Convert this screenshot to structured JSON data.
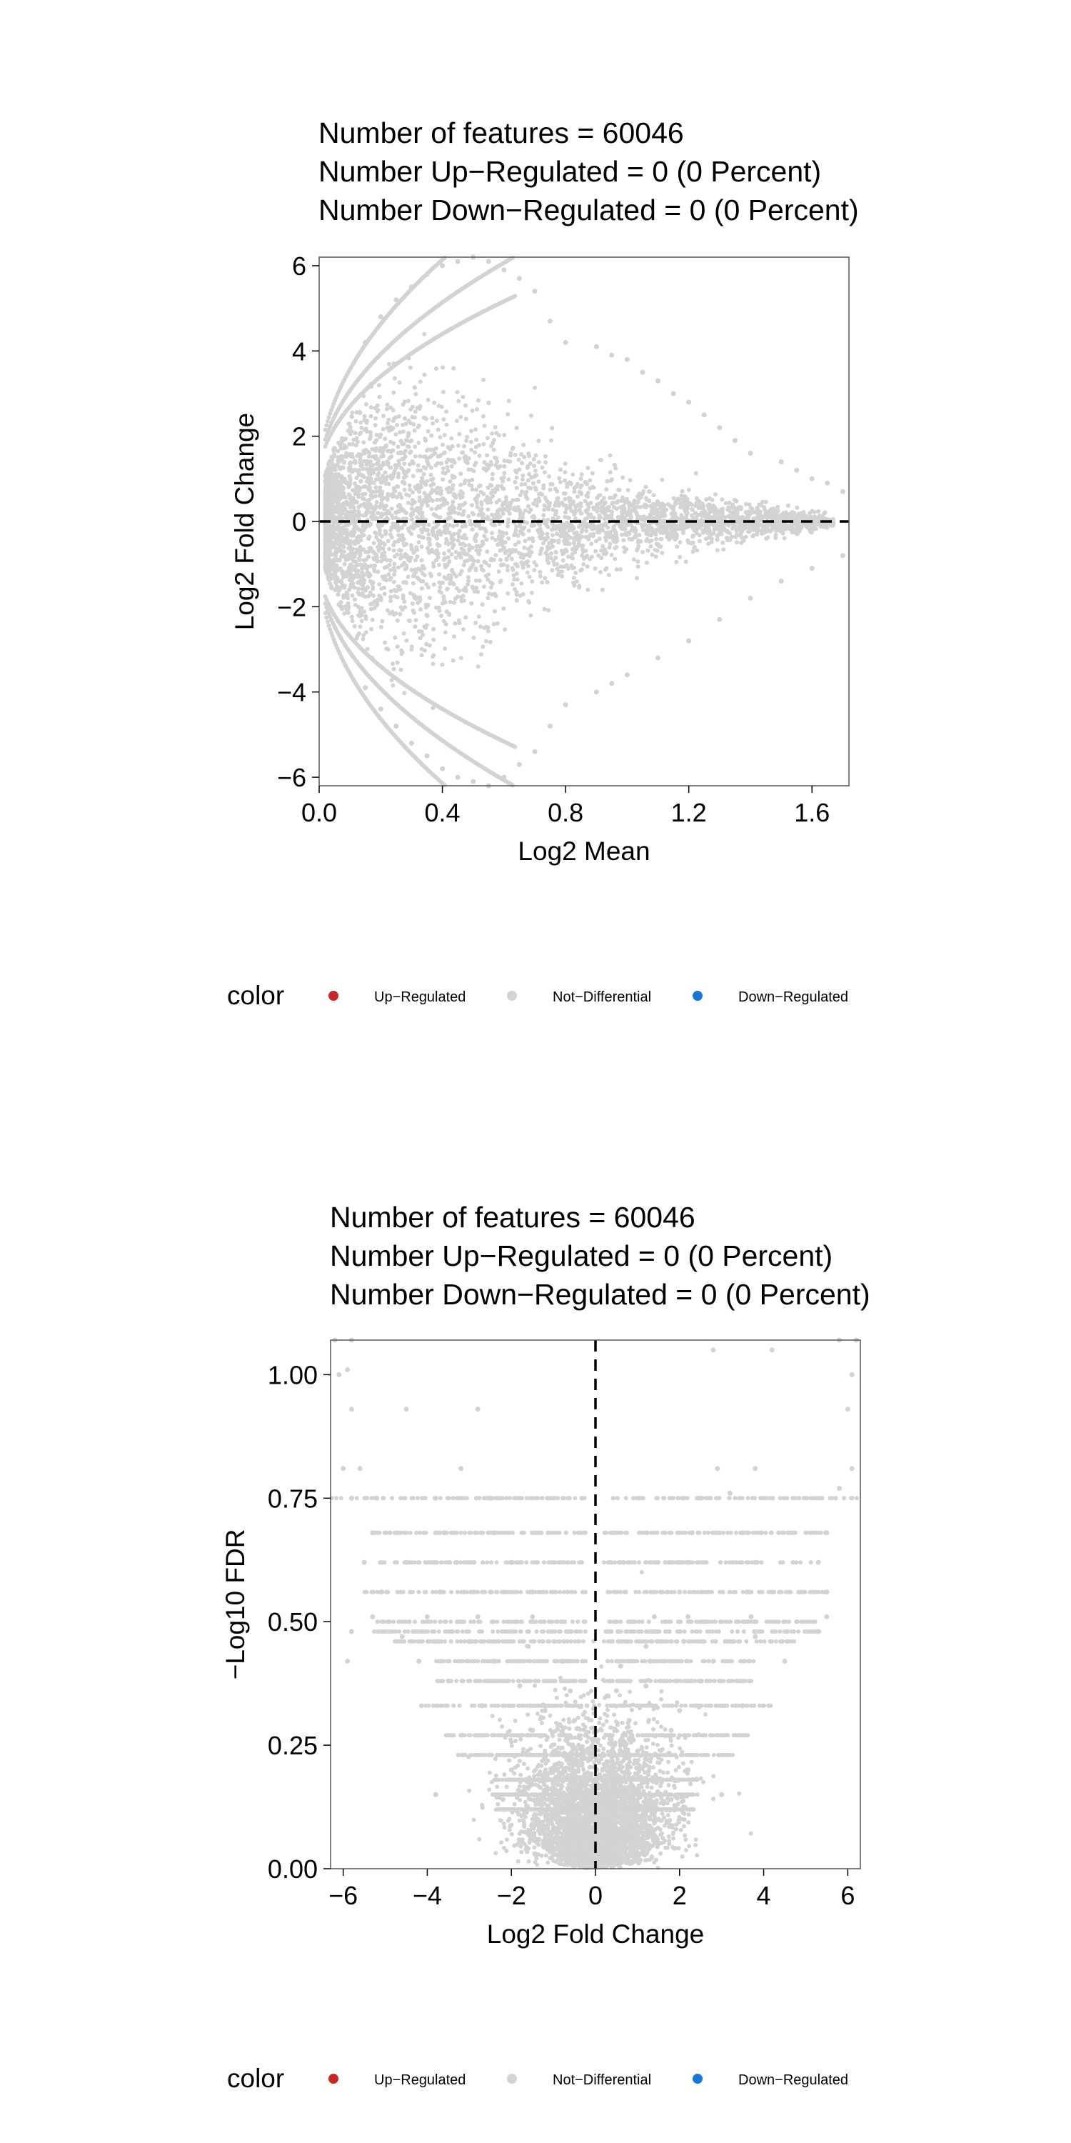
{
  "colors": {
    "up": "#C62828",
    "not_differential": "#D3D3D3",
    "down": "#1976D2",
    "axis": "#000000",
    "frame": "#555555"
  },
  "chart_data": [
    {
      "type": "scatter",
      "title": [
        "Number of features = 60046",
        "Number Up−Regulated = 0 (0 Percent)",
        "Number Down−Regulated = 0 (0 Percent)"
      ],
      "xlabel": "Log2 Mean",
      "ylabel": "Log2 Fold Change",
      "xlim": [
        0,
        1.72
      ],
      "ylim": [
        -6.2,
        6.2
      ],
      "xticks": [
        0,
        0.4,
        0.8,
        1.2,
        1.6
      ],
      "xtick_labels": [
        "0.0",
        "0.4",
        "0.8",
        "1.2",
        "1.6"
      ],
      "yticks": [
        -6,
        -4,
        -2,
        0,
        2,
        4,
        6
      ],
      "ytick_labels": [
        "−6",
        "−4",
        "−2",
        "0",
        "2",
        "4",
        "6"
      ],
      "reference_line": {
        "axis": "y",
        "value": 0,
        "style": "dashed"
      },
      "grid": false,
      "series": [
        {
          "color": "#D3D3D3",
          "points": [
            [
              0.15,
              4.2
            ],
            [
              0.2,
              4.8
            ],
            [
              0.25,
              5.2
            ],
            [
              0.3,
              5.5
            ],
            [
              0.35,
              5.8
            ],
            [
              0.4,
              6.0
            ],
            [
              0.45,
              6.1
            ],
            [
              0.5,
              6.2
            ],
            [
              0.55,
              6.1
            ],
            [
              0.6,
              5.9
            ],
            [
              0.65,
              5.7
            ],
            [
              0.7,
              5.4
            ],
            [
              0.75,
              4.7
            ],
            [
              0.8,
              4.2
            ],
            [
              0.9,
              4.1
            ],
            [
              0.95,
              3.9
            ],
            [
              1.0,
              3.8
            ],
            [
              1.05,
              3.5
            ],
            [
              1.1,
              3.3
            ],
            [
              1.15,
              3.0
            ],
            [
              1.2,
              2.8
            ],
            [
              1.25,
              2.5
            ],
            [
              1.3,
              2.2
            ],
            [
              1.35,
              1.9
            ],
            [
              1.4,
              1.6
            ],
            [
              1.5,
              1.4
            ],
            [
              1.55,
              1.2
            ],
            [
              1.6,
              1.0
            ],
            [
              1.65,
              0.9
            ],
            [
              1.7,
              0.7
            ],
            [
              0.15,
              -3.9
            ],
            [
              0.2,
              -4.4
            ],
            [
              0.25,
              -4.8
            ],
            [
              0.3,
              -5.2
            ],
            [
              0.35,
              -5.5
            ],
            [
              0.4,
              -5.8
            ],
            [
              0.45,
              -6.0
            ],
            [
              0.5,
              -6.1
            ],
            [
              0.55,
              -6.2
            ],
            [
              0.6,
              -6.0
            ],
            [
              0.65,
              -5.7
            ],
            [
              0.7,
              -5.4
            ],
            [
              0.75,
              -4.8
            ],
            [
              0.8,
              -4.3
            ],
            [
              0.9,
              -4.0
            ],
            [
              0.95,
              -3.8
            ],
            [
              1.0,
              -3.6
            ],
            [
              1.1,
              -3.2
            ],
            [
              1.2,
              -2.8
            ],
            [
              1.3,
              -2.3
            ],
            [
              1.4,
              -1.8
            ],
            [
              1.5,
              -1.4
            ],
            [
              1.6,
              -1.1
            ],
            [
              1.7,
              -0.8
            ]
          ]
        }
      ]
    },
    {
      "type": "scatter",
      "title": [
        "Number of features = 60046",
        "Number Up−Regulated = 0 (0 Percent)",
        "Number Down−Regulated = 0 (0 Percent)"
      ],
      "xlabel": "Log2 Fold Change",
      "ylabel": "−Log10 FDR",
      "xlim": [
        -6.3,
        6.3
      ],
      "ylim": [
        0,
        1.07
      ],
      "xticks": [
        -6,
        -4,
        -2,
        0,
        2,
        4,
        6
      ],
      "xtick_labels": [
        "−6",
        "−4",
        "−2",
        "0",
        "2",
        "4",
        "6"
      ],
      "yticks": [
        0,
        0.25,
        0.5,
        0.75,
        1.0
      ],
      "ytick_labels": [
        "0.00",
        "0.25",
        "0.50",
        "0.75",
        "1.00"
      ],
      "reference_line": {
        "axis": "x",
        "value": 0,
        "style": "dashed"
      },
      "grid": false,
      "series": [
        {
          "color": "#D3D3D3",
          "points": [
            [
              -6.2,
              1.07
            ],
            [
              -5.8,
              1.07
            ],
            [
              -6.1,
              1.0
            ],
            [
              -5.9,
              1.01
            ],
            [
              -5.8,
              0.93
            ],
            [
              -4.5,
              0.93
            ],
            [
              -2.8,
              0.93
            ],
            [
              -6.0,
              0.81
            ],
            [
              -5.6,
              0.81
            ],
            [
              -3.2,
              0.81
            ],
            [
              -5.8,
              0.75
            ],
            [
              -5.2,
              0.75
            ],
            [
              -3.8,
              0.75
            ],
            [
              -2.5,
              0.75
            ],
            [
              -5.3,
              0.68
            ],
            [
              -4.7,
              0.68
            ],
            [
              -3.6,
              0.68
            ],
            [
              -2.4,
              0.68
            ],
            [
              -5.5,
              0.62
            ],
            [
              -4.5,
              0.62
            ],
            [
              -3.3,
              0.62
            ],
            [
              -2.0,
              0.62
            ],
            [
              -5.1,
              0.56
            ],
            [
              -3.7,
              0.56
            ],
            [
              -2.5,
              0.56
            ],
            [
              -1.5,
              0.56
            ],
            [
              -5.3,
              0.51
            ],
            [
              -4.0,
              0.51
            ],
            [
              -2.8,
              0.51
            ],
            [
              -1.5,
              0.51
            ],
            [
              -5.8,
              0.48
            ],
            [
              -4.6,
              0.47
            ],
            [
              -3.0,
              0.46
            ],
            [
              -1.6,
              0.45
            ],
            [
              -5.9,
              0.42
            ],
            [
              -4.2,
              0.42
            ],
            [
              -2.4,
              0.42
            ],
            [
              -0.8,
              0.42
            ],
            [
              -3.5,
              0.38
            ],
            [
              -1.8,
              0.37
            ],
            [
              -0.6,
              0.36
            ],
            [
              -2.7,
              0.33
            ],
            [
              -1.2,
              0.32
            ],
            [
              -0.5,
              0.3
            ],
            [
              -1.5,
              0.28
            ],
            [
              -0.7,
              0.26
            ],
            [
              -0.3,
              0.24
            ],
            [
              -2.0,
              0.2
            ],
            [
              -1.0,
              0.18
            ],
            [
              -0.4,
              0.16
            ],
            [
              -3.8,
              0.15
            ],
            [
              -2.2,
              0.14
            ],
            [
              -0.9,
              0.13
            ],
            [
              -1.4,
              0.1
            ],
            [
              -0.6,
              0.08
            ],
            [
              -0.3,
              0.05
            ],
            [
              -0.1,
              0.02
            ],
            [
              6.2,
              1.07
            ],
            [
              5.8,
              1.07
            ],
            [
              6.1,
              1.0
            ],
            [
              4.2,
              1.05
            ],
            [
              2.8,
              1.05
            ],
            [
              6.0,
              0.93
            ],
            [
              6.1,
              0.81
            ],
            [
              3.8,
              0.81
            ],
            [
              2.9,
              0.81
            ],
            [
              5.8,
              0.77
            ],
            [
              3.2,
              0.76
            ],
            [
              2.5,
              0.75
            ],
            [
              5.5,
              0.68
            ],
            [
              3.5,
              0.68
            ],
            [
              2.3,
              0.68
            ],
            [
              5.3,
              0.62
            ],
            [
              3.8,
              0.62
            ],
            [
              2.2,
              0.62
            ],
            [
              5.5,
              0.56
            ],
            [
              3.6,
              0.56
            ],
            [
              2.0,
              0.56
            ],
            [
              5.5,
              0.51
            ],
            [
              3.7,
              0.51
            ],
            [
              2.2,
              0.51
            ],
            [
              1.4,
              0.51
            ],
            [
              5.3,
              0.48
            ],
            [
              3.8,
              0.47
            ],
            [
              2.1,
              0.46
            ],
            [
              1.2,
              0.45
            ],
            [
              4.5,
              0.42
            ],
            [
              2.8,
              0.42
            ],
            [
              1.3,
              0.42
            ],
            [
              0.6,
              0.41
            ],
            [
              2.5,
              0.38
            ],
            [
              1.2,
              0.37
            ],
            [
              0.5,
              0.36
            ],
            [
              3.5,
              0.33
            ],
            [
              2.0,
              0.32
            ],
            [
              0.8,
              0.3
            ],
            [
              1.8,
              0.28
            ],
            [
              0.9,
              0.26
            ],
            [
              0.4,
              0.24
            ],
            [
              2.2,
              0.2
            ],
            [
              1.2,
              0.18
            ],
            [
              0.5,
              0.16
            ],
            [
              3.0,
              0.15
            ],
            [
              1.8,
              0.14
            ],
            [
              0.7,
              0.13
            ],
            [
              1.5,
              0.1
            ],
            [
              0.7,
              0.08
            ],
            [
              0.3,
              0.05
            ],
            [
              0.1,
              0.02
            ]
          ]
        }
      ]
    }
  ],
  "legends": [
    {
      "title": "color",
      "items": [
        {
          "label": "Up−Regulated",
          "color": "#C62828"
        },
        {
          "label": "Not−Differential",
          "color": "#D3D3D3"
        },
        {
          "label": "Down−Regulated",
          "color": "#1976D2"
        }
      ]
    },
    {
      "title": "color",
      "items": [
        {
          "label": "Up−Regulated",
          "color": "#C62828"
        },
        {
          "label": "Not−Differential",
          "color": "#D3D3D3"
        },
        {
          "label": "Down−Regulated",
          "color": "#1976D2"
        }
      ]
    }
  ]
}
